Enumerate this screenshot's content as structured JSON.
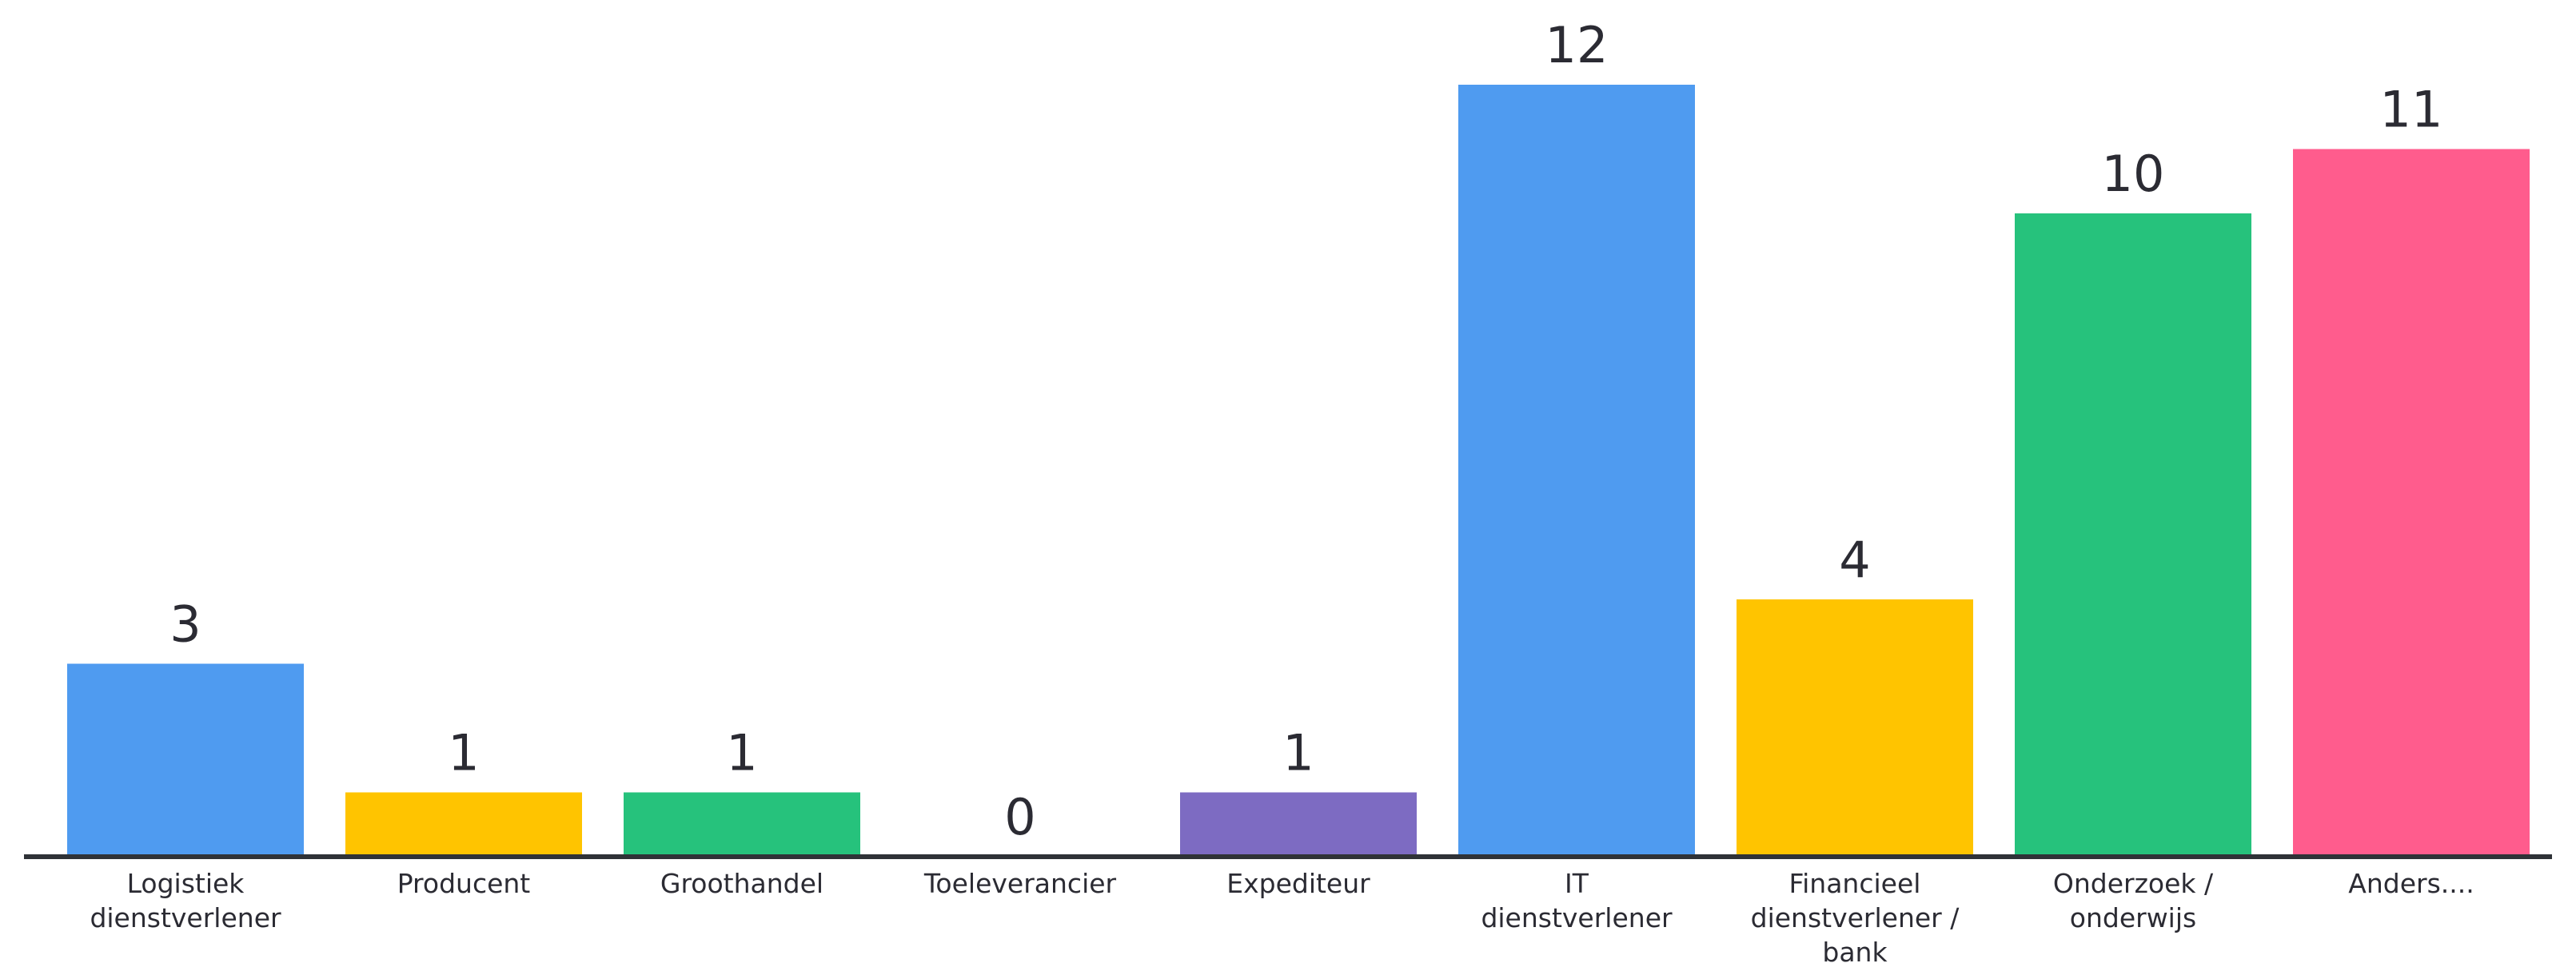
{
  "chart_data": {
    "type": "bar",
    "categories": [
      "Logistiek dienstverlener",
      "Producent",
      "Groothandel",
      "Toeleverancier",
      "Expediteur",
      "IT dienstverlener",
      "Financieel dienstverlener / bank",
      "Onderzoek / onderwijs",
      "Anders...."
    ],
    "category_lines": [
      [
        "Logistiek",
        "dienstverlener"
      ],
      [
        "Producent"
      ],
      [
        "Groothandel"
      ],
      [
        "Toeleverancier"
      ],
      [
        "Expediteur"
      ],
      [
        "IT",
        "dienstverlener"
      ],
      [
        "Financieel",
        "dienstverlener /",
        "bank"
      ],
      [
        "Onderzoek /",
        "onderwijs"
      ],
      [
        "Anders...."
      ]
    ],
    "values": [
      3,
      1,
      1,
      0,
      1,
      12,
      4,
      10,
      11
    ],
    "colors": [
      "#4f9bf0",
      "#ffc400",
      "#26c27c",
      "#4f9bf0",
      "#7d6bc2",
      "#4f9bf0",
      "#ffc400",
      "#26c27c",
      "#ff5c8d"
    ],
    "ylim": [
      0,
      12
    ],
    "grid": false,
    "legend": "none"
  }
}
